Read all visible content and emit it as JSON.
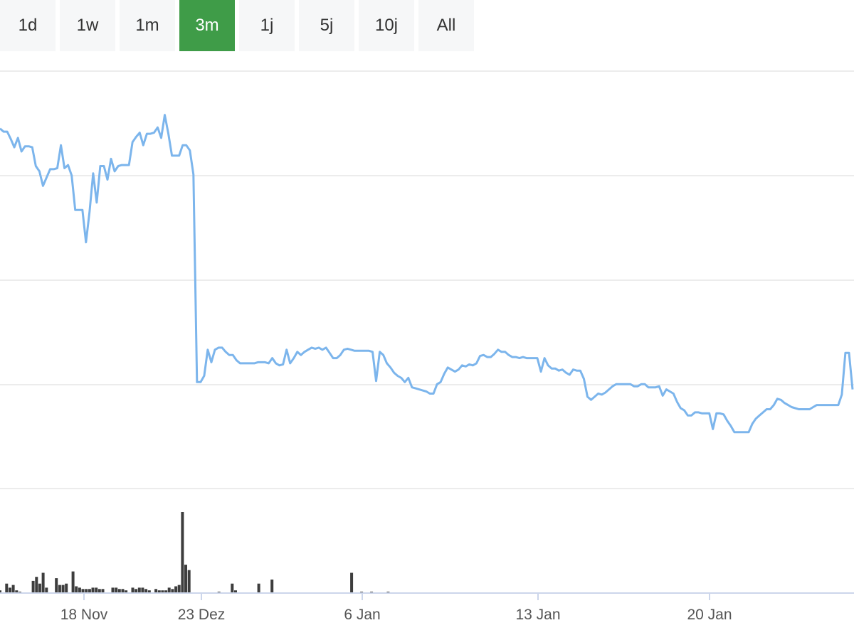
{
  "range_selector": {
    "buttons": [
      {
        "label": "1d"
      },
      {
        "label": "1w"
      },
      {
        "label": "1m"
      },
      {
        "label": "3m",
        "active": true
      },
      {
        "label": "1j"
      },
      {
        "label": "5j"
      },
      {
        "label": "10j"
      },
      {
        "label": "All"
      }
    ]
  },
  "colors": {
    "line": "#7cb5ec",
    "volume": "#3d3d3d",
    "active_button": "#3f9c48",
    "button_bg": "#f6f7f8",
    "grid": "#e6e6e6"
  },
  "chart_data": {
    "type": "line",
    "grid": true,
    "legend": "none",
    "x_ticks": [
      "18 Nov",
      "23 Dez",
      "6 Jan",
      "13 Jan",
      "20 Jan"
    ],
    "series": [
      {
        "type": "line",
        "values": [
          64.5,
          64.2,
          64.2,
          63.5,
          62.7,
          63.6,
          62.3,
          62.8,
          62.8,
          62.7,
          60.9,
          60.4,
          59.0,
          59.8,
          60.6,
          60.6,
          60.7,
          62.9,
          60.7,
          61.0,
          60.0,
          56.7,
          56.7,
          56.7,
          53.6,
          56.5,
          60.2,
          57.4,
          60.9,
          60.9,
          59.6,
          61.6,
          60.4,
          60.9,
          61.0,
          61.0,
          61.0,
          63.2,
          63.7,
          64.1,
          62.9,
          64.0,
          64.0,
          64.1,
          64.6,
          63.6,
          65.8,
          64.0,
          61.9,
          61.9,
          61.9,
          62.9,
          62.9,
          62.4,
          60.1,
          40.2,
          40.2,
          40.8,
          43.3,
          42.1,
          43.3,
          43.5,
          43.5,
          43.1,
          42.8,
          42.8,
          42.3,
          42.0,
          42.0,
          42.0,
          42.0,
          42.0,
          42.1,
          42.1,
          42.1,
          42.0,
          42.5,
          42.0,
          41.8,
          41.9,
          43.3,
          42.0,
          42.5,
          43.1,
          42.8,
          43.1,
          43.3,
          43.5,
          43.4,
          43.5,
          43.3,
          43.5,
          43.0,
          42.5,
          42.5,
          42.8,
          43.3,
          43.4,
          43.3,
          43.2,
          43.2,
          43.2,
          43.2,
          43.2,
          43.1,
          40.3,
          43.1,
          42.8,
          42.0,
          41.6,
          41.1,
          40.8,
          40.6,
          40.2,
          40.6,
          39.7,
          39.6,
          39.5,
          39.4,
          39.3,
          39.1,
          39.1,
          40.0,
          40.2,
          41.0,
          41.6,
          41.4,
          41.2,
          41.4,
          41.8,
          41.7,
          41.9,
          41.8,
          42.0,
          42.7,
          42.8,
          42.6,
          42.6,
          42.9,
          43.3,
          43.1,
          43.1,
          42.8,
          42.6,
          42.6,
          42.5,
          42.6,
          42.5,
          42.5,
          42.5,
          42.5,
          41.2,
          42.5,
          41.8,
          41.5,
          41.5,
          41.3,
          41.4,
          41.1,
          40.9,
          41.4,
          41.3,
          41.3,
          40.5,
          38.8,
          38.5,
          38.8,
          39.1,
          39.0,
          39.2,
          39.5,
          39.8,
          40.0,
          40.0,
          40.0,
          40.0,
          40.0,
          39.8,
          39.8,
          40.0,
          40.0,
          39.7,
          39.7,
          39.7,
          39.8,
          38.9,
          39.5,
          39.3,
          39.1,
          38.3,
          37.7,
          37.5,
          37.0,
          37.0,
          37.3,
          37.3,
          37.2,
          37.2,
          37.2,
          35.7,
          37.2,
          37.2,
          37.1,
          36.5,
          36.0,
          35.4,
          35.4,
          35.4,
          35.4,
          35.4,
          36.2,
          36.7,
          37.0,
          37.3,
          37.6,
          37.6,
          38.0,
          38.6,
          38.5,
          38.2,
          38.0,
          37.8,
          37.7,
          37.6,
          37.6,
          37.6,
          37.6,
          37.8,
          38.0,
          38.0,
          38.0,
          38.0,
          38.0,
          38.0,
          38.0,
          39.0,
          43.0,
          43.0,
          39.5
        ]
      },
      {
        "type": "volume",
        "values": [
          4,
          0,
          14,
          8,
          12,
          4,
          2,
          0,
          0,
          0,
          18,
          24,
          14,
          30,
          8,
          0,
          0,
          22,
          12,
          12,
          14,
          0,
          32,
          10,
          8,
          6,
          6,
          6,
          8,
          8,
          6,
          6,
          0,
          0,
          8,
          8,
          6,
          6,
          4,
          0,
          8,
          6,
          8,
          8,
          6,
          4,
          0,
          6,
          4,
          4,
          4,
          8,
          6,
          10,
          12,
          120,
          42,
          34,
          0,
          0,
          0,
          0,
          0,
          0,
          0,
          0,
          2,
          0,
          0,
          0,
          14,
          4,
          0,
          0,
          0,
          0,
          0,
          0,
          14,
          0,
          0,
          0,
          20,
          0,
          0,
          0,
          0,
          0,
          0,
          0,
          0,
          0,
          0,
          0,
          0,
          0,
          0,
          0,
          0,
          0,
          0,
          0,
          0,
          0,
          0,
          0,
          30,
          0,
          0,
          2,
          0,
          0,
          2,
          0,
          0,
          0,
          0,
          2,
          0,
          0,
          0,
          0,
          0,
          0,
          0,
          0,
          0,
          0,
          0,
          0,
          0,
          0,
          0,
          0,
          0,
          0,
          0,
          0,
          0,
          0,
          0,
          0,
          0,
          0,
          0,
          0,
          0,
          0,
          0,
          0,
          0,
          0,
          0,
          0,
          0,
          0,
          0,
          0,
          0,
          0,
          0,
          0,
          0,
          0,
          0,
          0,
          0,
          0,
          0,
          0,
          0,
          0,
          0,
          0,
          0,
          0,
          0,
          0,
          0,
          0,
          0,
          0,
          0,
          0,
          0,
          0,
          0,
          0,
          0,
          0,
          0,
          0,
          0,
          0,
          0,
          0,
          0,
          0,
          0,
          0,
          0,
          0,
          0,
          0,
          0,
          0,
          0,
          0,
          0,
          0,
          0,
          0,
          0,
          0,
          0,
          0,
          0,
          0,
          0,
          0,
          0,
          0,
          0,
          0,
          0,
          0,
          0,
          0,
          0,
          0,
          0,
          0,
          0,
          0,
          0,
          0,
          0,
          0,
          0,
          0,
          0,
          0,
          0,
          0,
          0,
          0,
          0,
          0,
          0,
          0,
          0,
          0,
          0,
          0,
          0,
          0,
          0,
          0
        ]
      }
    ]
  }
}
